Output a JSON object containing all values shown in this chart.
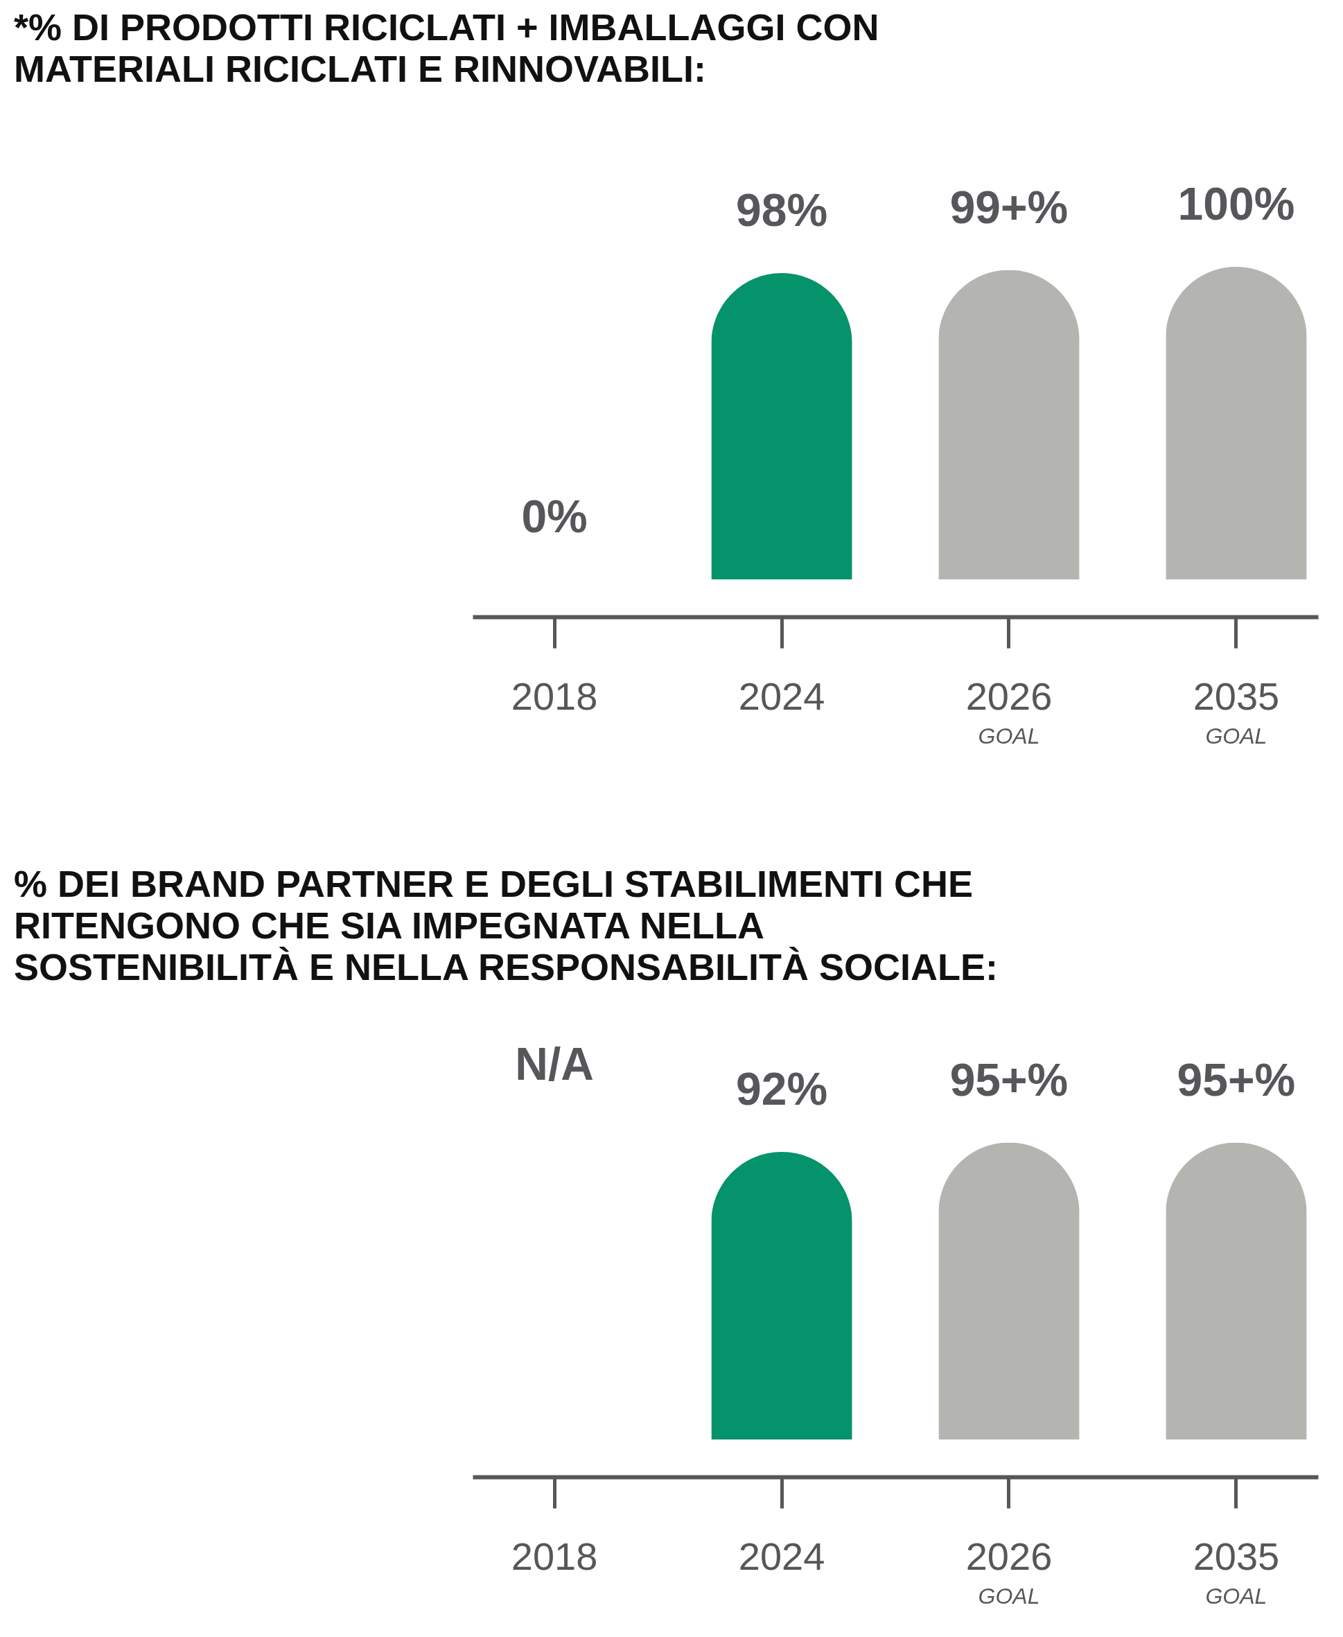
{
  "chart_data": [
    {
      "type": "bar",
      "title": "*% DI PRODOTTI RICICLATI + IMBALLAGGI CON MATERIALI RICICLATI E RINNOVABILI:",
      "categories": [
        "2018",
        "2024",
        "2026 GOAL",
        "2035 GOAL"
      ],
      "values": [
        0,
        98,
        99,
        100
      ],
      "colors": [
        "#d4d4d0",
        "#05936b",
        "#b4b4b0",
        "#b4b4b0"
      ],
      "value_labels": [
        "0%",
        "98%",
        "99+%",
        "100%"
      ],
      "tick_labels": "x"
    },
    {
      "type": "bar",
      "title": "% DEI BRAND PARTNER E DEGLI STABILIMENTI CHE RITENGONO CHE SIA IMPEGNATA NELLA SOSTENIBILITÀ E NELLA RESPONSABILITÀ SOCIALE:",
      "categories": [
        "2018",
        "2024",
        "2026 GOAL",
        "2035 GOAL"
      ],
      "values": [
        null,
        92,
        95,
        95
      ],
      "colors": [
        "#d4d4d0",
        "#05936b",
        "#b4b4b0",
        "#b4b4b0"
      ],
      "value_labels": [
        "N/A",
        "92%",
        "95+%",
        "95+%"
      ],
      "tick_labels": "x"
    }
  ]
}
